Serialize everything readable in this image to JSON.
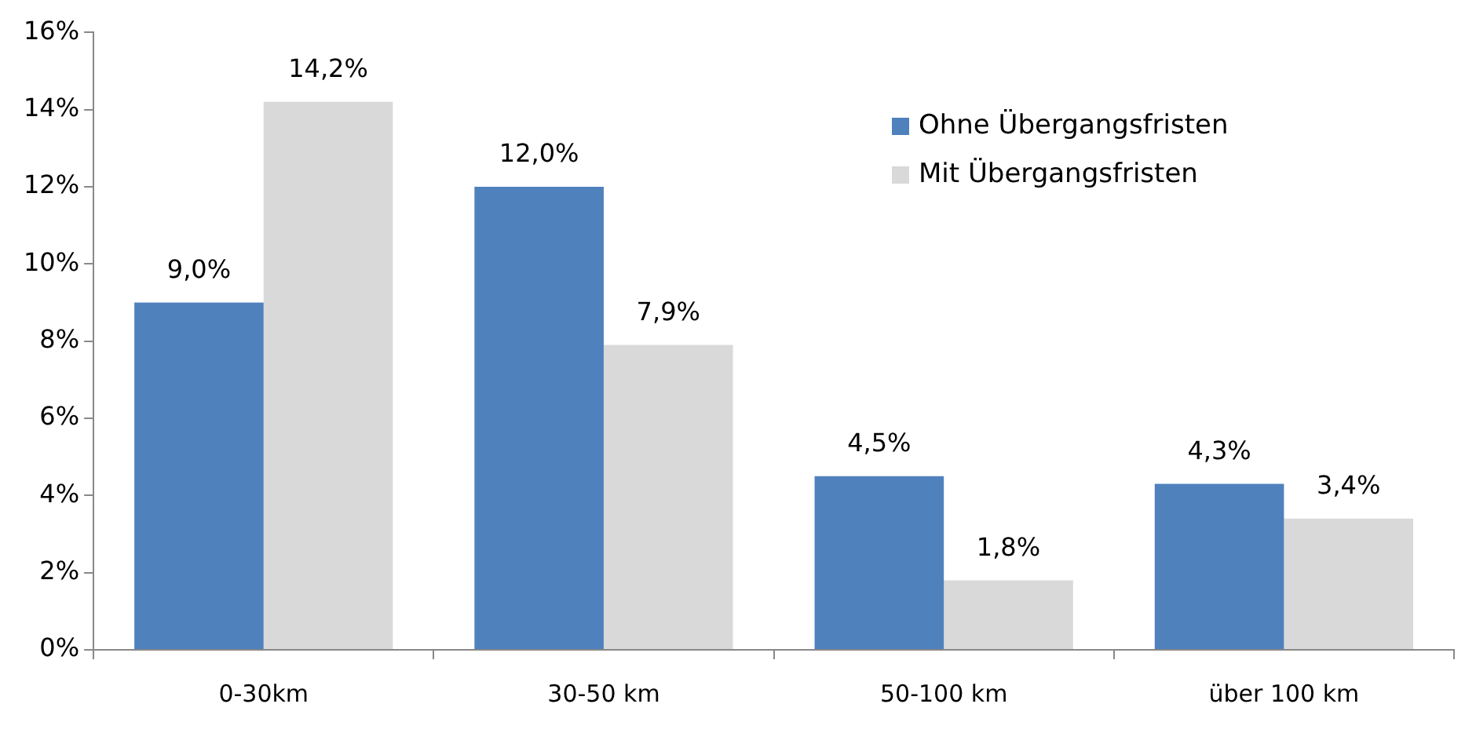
{
  "chart_data": {
    "type": "bar",
    "categories": [
      "0-30km",
      "30-50 km",
      "50-100 km",
      "über 100 km"
    ],
    "series": [
      {
        "name": "Ohne Übergangsfristen",
        "color": "#4f81bd",
        "values": [
          9.0,
          12.0,
          4.5,
          4.3
        ],
        "value_labels": [
          "9,0%",
          "12,0%",
          "4,5%",
          "4,3%"
        ]
      },
      {
        "name": "Mit Übergangsfristen",
        "color": "#d9d9d9",
        "values": [
          14.2,
          7.9,
          1.8,
          3.4
        ],
        "value_labels": [
          "14,2%",
          "7,9%",
          "1,8%",
          "3,4%"
        ]
      }
    ],
    "ylim": [
      0,
      16
    ],
    "yticks": [
      {
        "value": 0,
        "label": "0%"
      },
      {
        "value": 2,
        "label": "2%"
      },
      {
        "value": 4,
        "label": "4%"
      },
      {
        "value": 6,
        "label": "6%"
      },
      {
        "value": 8,
        "label": "8%"
      },
      {
        "value": 10,
        "label": "10%"
      },
      {
        "value": 12,
        "label": "12%"
      },
      {
        "value": 14,
        "label": "14%"
      },
      {
        "value": 16,
        "label": "16%"
      }
    ],
    "grid": false,
    "legend": "top right"
  }
}
